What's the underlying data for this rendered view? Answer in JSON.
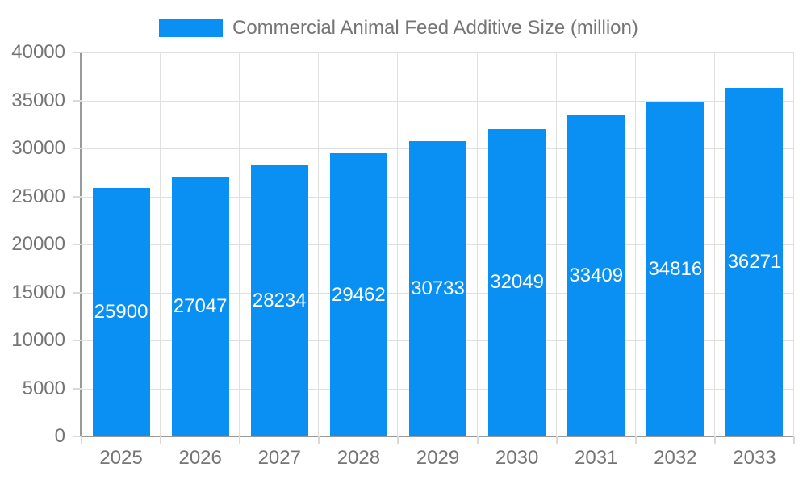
{
  "legend": {
    "label": "Commercial Animal Feed Additive Size (million)"
  },
  "colors": {
    "bar": "#0A8FF2",
    "grid": "#E0E0E0",
    "axis": "#999999",
    "tick": "#D9D9D9",
    "text": "#757575",
    "bar_label_text": "#FFFFFF",
    "background": "#FFFFFF"
  },
  "chart_data": {
    "type": "bar",
    "title": "Commercial Animal Feed Additive Size (million)",
    "series_name": "Commercial Animal Feed Additive Size (million)",
    "categories": [
      "2025",
      "2026",
      "2027",
      "2028",
      "2029",
      "2030",
      "2031",
      "2032",
      "2033"
    ],
    "values": [
      25900,
      27047,
      28234,
      29462,
      30733,
      32049,
      33409,
      34816,
      36271
    ],
    "xlabel": "",
    "ylabel": "",
    "ylim": [
      0,
      40000
    ],
    "ytick_step": 5000,
    "ytick_labels": [
      "0",
      "5000",
      "10000",
      "15000",
      "20000",
      "25000",
      "30000",
      "35000",
      "40000"
    ],
    "grid": true,
    "legend_position": "top",
    "value_labels": "white, centered inside bars"
  }
}
